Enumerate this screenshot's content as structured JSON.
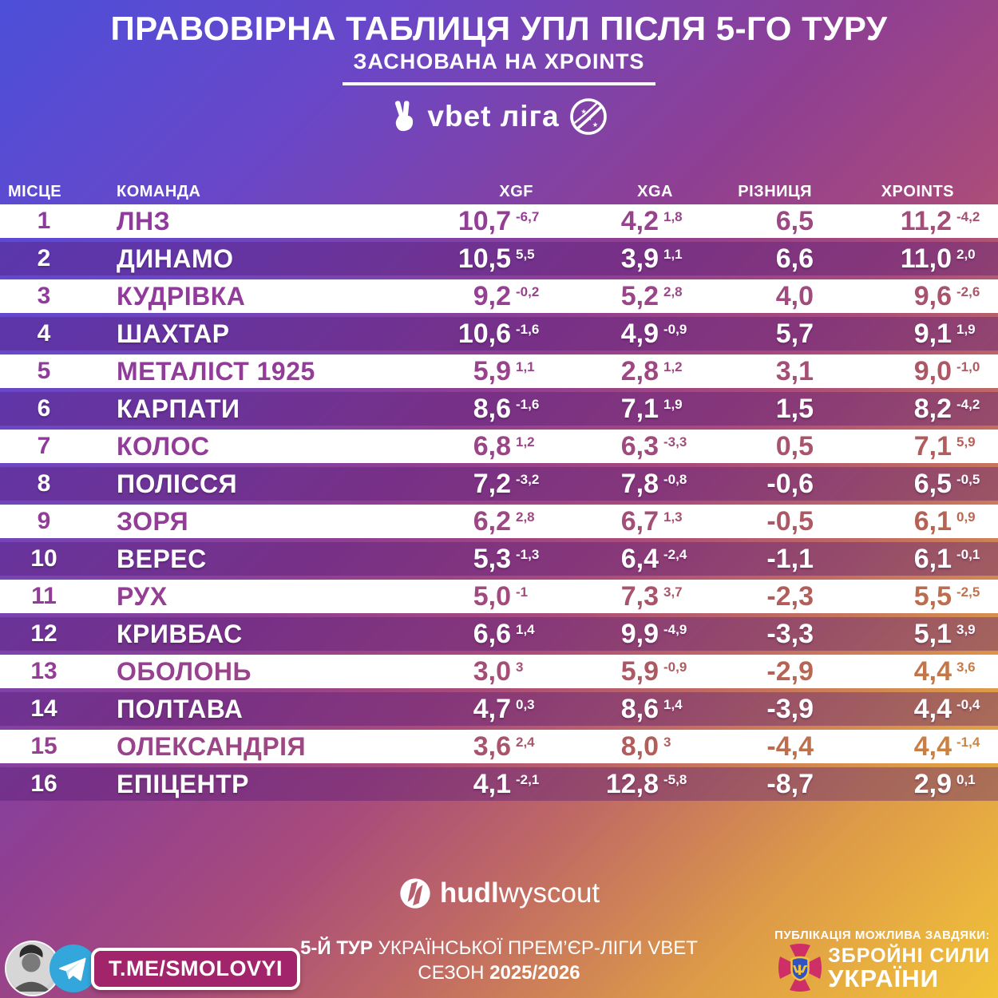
{
  "header": {
    "title": "ПРАВОВІРНА ТАБЛИЦЯ УПЛ ПІСЛЯ 5-ГО ТУРУ",
    "subtitle": "ЗАСНОВАНА НА XPOINTS",
    "league_logo_text": "vbet ліга"
  },
  "chart_data": {
    "type": "table",
    "title": "Правовірна таблиця УПЛ після 5-го туру (заснована на xPoints)",
    "columns": {
      "place": "МІСЦЕ",
      "team": "КОМАНДА",
      "xgf": "XGF",
      "xga": "XGA",
      "diff": "РІЗНИЦЯ",
      "xpoints": "XPOINTS"
    },
    "rows": [
      {
        "place": "1",
        "team": "ЛНЗ",
        "xgf": "10,7",
        "xgf_d": "-6,7",
        "xga": "4,2",
        "xga_d": "1,8",
        "diff": "6,5",
        "xp": "11,2",
        "xp_d": "-4,2"
      },
      {
        "place": "2",
        "team": "ДИНАМО",
        "xgf": "10,5",
        "xgf_d": "5,5",
        "xga": "3,9",
        "xga_d": "1,1",
        "diff": "6,6",
        "xp": "11,0",
        "xp_d": "2,0"
      },
      {
        "place": "3",
        "team": "КУДРІВКА",
        "xgf": "9,2",
        "xgf_d": "-0,2",
        "xga": "5,2",
        "xga_d": "2,8",
        "diff": "4,0",
        "xp": "9,6",
        "xp_d": "-2,6"
      },
      {
        "place": "4",
        "team": "ШАХТАР",
        "xgf": "10,6",
        "xgf_d": "-1,6",
        "xga": "4,9",
        "xga_d": "-0,9",
        "diff": "5,7",
        "xp": "9,1",
        "xp_d": "1,9"
      },
      {
        "place": "5",
        "team": "МЕТАЛІСТ 1925",
        "xgf": "5,9",
        "xgf_d": "1,1",
        "xga": "2,8",
        "xga_d": "1,2",
        "diff": "3,1",
        "xp": "9,0",
        "xp_d": "-1,0"
      },
      {
        "place": "6",
        "team": "КАРПАТИ",
        "xgf": "8,6",
        "xgf_d": "-1,6",
        "xga": "7,1",
        "xga_d": "1,9",
        "diff": "1,5",
        "xp": "8,2",
        "xp_d": "-4,2"
      },
      {
        "place": "7",
        "team": "КОЛОС",
        "xgf": "6,8",
        "xgf_d": "1,2",
        "xga": "6,3",
        "xga_d": "-3,3",
        "diff": "0,5",
        "xp": "7,1",
        "xp_d": "5,9"
      },
      {
        "place": "8",
        "team": "ПОЛІССЯ",
        "xgf": "7,2",
        "xgf_d": "-3,2",
        "xga": "7,8",
        "xga_d": "-0,8",
        "diff": "-0,6",
        "xp": "6,5",
        "xp_d": "-0,5"
      },
      {
        "place": "9",
        "team": "ЗОРЯ",
        "xgf": "6,2",
        "xgf_d": "2,8",
        "xga": "6,7",
        "xga_d": "1,3",
        "diff": "-0,5",
        "xp": "6,1",
        "xp_d": "0,9"
      },
      {
        "place": "10",
        "team": "ВЕРЕС",
        "xgf": "5,3",
        "xgf_d": "-1,3",
        "xga": "6,4",
        "xga_d": "-2,4",
        "diff": "-1,1",
        "xp": "6,1",
        "xp_d": "-0,1"
      },
      {
        "place": "11",
        "team": "РУХ",
        "xgf": "5,0",
        "xgf_d": "-1",
        "xga": "7,3",
        "xga_d": "3,7",
        "diff": "-2,3",
        "xp": "5,5",
        "xp_d": "-2,5"
      },
      {
        "place": "12",
        "team": "КРИВБАС",
        "xgf": "6,6",
        "xgf_d": "1,4",
        "xga": "9,9",
        "xga_d": "-4,9",
        "diff": "-3,3",
        "xp": "5,1",
        "xp_d": "3,9"
      },
      {
        "place": "13",
        "team": "ОБОЛОНЬ",
        "xgf": "3,0",
        "xgf_d": "3",
        "xga": "5,9",
        "xga_d": "-0,9",
        "diff": "-2,9",
        "xp": "4,4",
        "xp_d": "3,6"
      },
      {
        "place": "14",
        "team": "ПОЛТАВА",
        "xgf": "4,7",
        "xgf_d": "0,3",
        "xga": "8,6",
        "xga_d": "1,4",
        "diff": "-3,9",
        "xp": "4,4",
        "xp_d": "-0,4"
      },
      {
        "place": "15",
        "team": "ОЛЕКСАНДРІЯ",
        "xgf": "3,6",
        "xgf_d": "2,4",
        "xga": "8,0",
        "xga_d": "3",
        "diff": "-4,4",
        "xp": "4,4",
        "xp_d": "-1,4"
      },
      {
        "place": "16",
        "team": "ЕПІЦЕНТР",
        "xgf": "4,1",
        "xgf_d": "-2,1",
        "xga": "12,8",
        "xga_d": "-5,8",
        "diff": "-8,7",
        "xp": "2,9",
        "xp_d": "0,1"
      }
    ]
  },
  "footer": {
    "hudl_bold": "hudl",
    "hudl_light": "wyscout",
    "telegram_handle": "T.ME/SMOLOVYI",
    "center": {
      "line1_bold": "5-Й ТУР",
      "line1_rest": " УКРАЇНСЬКОЇ ПРЕМ’ЄР-ЛІГИ VBET",
      "line2_prefix": "СЕЗОН ",
      "line2_bold": "2025/2026"
    },
    "credit": {
      "small": "ПУБЛІКАЦІЯ МОЖЛИВА ЗАВДЯКИ:",
      "line1": "ЗБРОЙНІ СИЛИ",
      "line2": "УКРАЇНИ"
    }
  },
  "colors": {
    "bg_top_left": "#4c4fd9",
    "bg_middle": "#8f3f92",
    "bg_bottom_right": "#f2c338",
    "light_row_bg": "#ffffff",
    "band_row_overlay": "rgba(86,28,118,0.40)",
    "light_row_text_start": "#8d36a6",
    "light_row_text_end": "#dfa435",
    "badge_bg": "#a2246a",
    "telegram_blue": "#33a6dc",
    "emblem_crimson": "#ce2f66",
    "emblem_gold": "#f2c338",
    "emblem_blue": "#2f52c4"
  }
}
